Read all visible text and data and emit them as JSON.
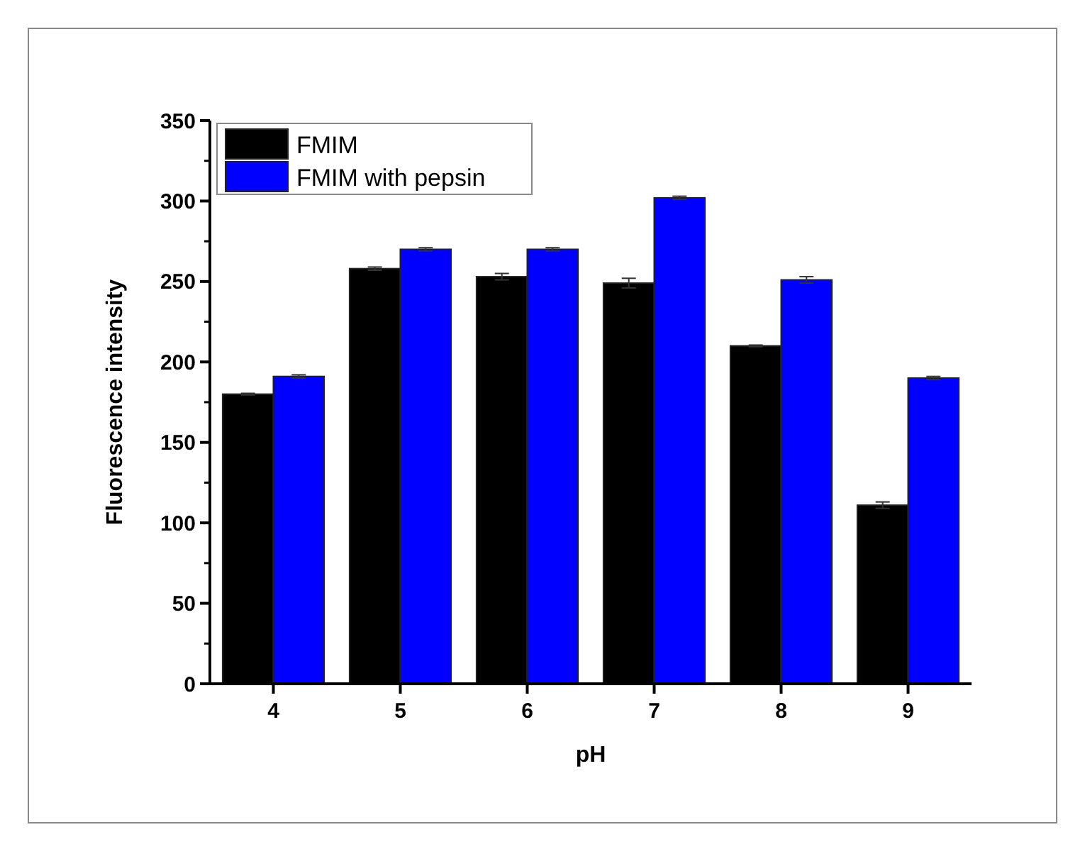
{
  "chart_data": {
    "type": "bar",
    "xlabel": "pH",
    "ylabel": "Fluorescence intensity",
    "categories": [
      "4",
      "5",
      "6",
      "7",
      "8",
      "9"
    ],
    "series": [
      {
        "name": "FMIM",
        "color": "#000000",
        "values": [
          180,
          258,
          253,
          249,
          210,
          111
        ],
        "errors": [
          0.5,
          1,
          2,
          3,
          0.5,
          2
        ]
      },
      {
        "name": "FMIM with pepsin",
        "color": "#0000ff",
        "values": [
          191,
          270,
          270,
          302,
          251,
          190
        ],
        "errors": [
          1,
          1,
          1,
          1,
          2,
          1
        ]
      }
    ],
    "ylim": [
      0,
      350
    ],
    "yticks": [
      0,
      50,
      100,
      150,
      200,
      250,
      300,
      350
    ],
    "legend": "top left",
    "grid": false
  }
}
